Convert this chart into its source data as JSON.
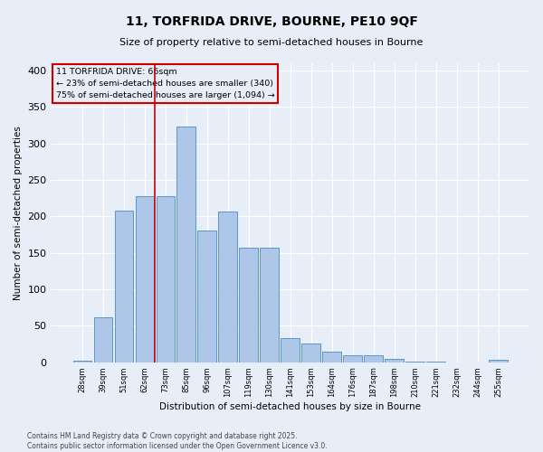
{
  "title_line1": "11, TORFRIDA DRIVE, BOURNE, PE10 9QF",
  "title_line2": "Size of property relative to semi-detached houses in Bourne",
  "xlabel": "Distribution of semi-detached houses by size in Bourne",
  "ylabel": "Number of semi-detached properties",
  "footer_line1": "Contains HM Land Registry data © Crown copyright and database right 2025.",
  "footer_line2": "Contains public sector information licensed under the Open Government Licence v3.0.",
  "categories": [
    "28sqm",
    "39sqm",
    "51sqm",
    "62sqm",
    "73sqm",
    "85sqm",
    "96sqm",
    "107sqm",
    "119sqm",
    "130sqm",
    "141sqm",
    "153sqm",
    "164sqm",
    "176sqm",
    "187sqm",
    "198sqm",
    "210sqm",
    "221sqm",
    "232sqm",
    "244sqm",
    "255sqm"
  ],
  "bar_heights": [
    2,
    62,
    208,
    228,
    228,
    323,
    181,
    207,
    157,
    157,
    33,
    26,
    14,
    9,
    9,
    4,
    1,
    1,
    0,
    0,
    3
  ],
  "bar_color": "#aec6e8",
  "bar_edge_color": "#5a96c8",
  "background_color": "#e8eef8",
  "grid_color": "#ffffff",
  "annotation_line1": "11 TORFRIDA DRIVE: 66sqm",
  "annotation_line2": "← 23% of semi-detached houses are smaller (340)",
  "annotation_line3": "75% of semi-detached houses are larger (1,094) →",
  "annotation_box_edge_color": "#cc0000",
  "vline_index": 3.5,
  "vline_color": "#cc0000",
  "ylim_max": 410,
  "yticks": [
    0,
    50,
    100,
    150,
    200,
    250,
    300,
    350,
    400
  ]
}
